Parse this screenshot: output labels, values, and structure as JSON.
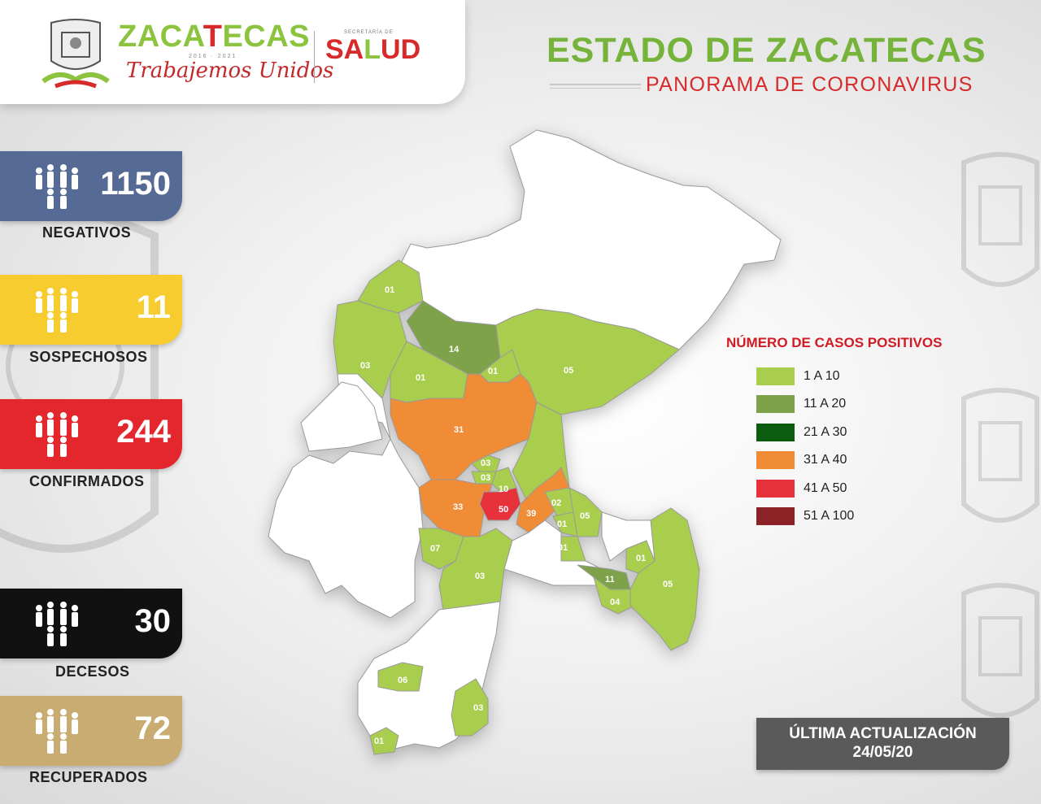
{
  "header": {
    "brand_left": "ZACA",
    "brand_mid": "T",
    "brand_right": "ECAS",
    "years": "2016 · 2021",
    "slogan": "Trabajemos Unidos",
    "secretaria": "SECRETARÍA DE",
    "salud_a": "SA",
    "salud_b": "L",
    "salud_c": "UD",
    "title": "ESTADO DE ZACATECAS",
    "subtitle": "PANORAMA DE CORONAVIRUS"
  },
  "stats": [
    {
      "label": "NEGATIVOS",
      "value": "1150",
      "color": "#566a96"
    },
    {
      "label": "SOSPECHOSOS",
      "value": "11",
      "color": "#f6cc2f"
    },
    {
      "label": "CONFIRMADOS",
      "value": "244",
      "color": "#e3272d"
    },
    {
      "label": "DECESOS",
      "value": "30",
      "color": "#111111"
    },
    {
      "label": "RECUPERADOS",
      "value": "72",
      "color": "#c8ac72"
    }
  ],
  "legend": {
    "title": "NÚMERO DE CASOS POSITIVOS",
    "items": [
      {
        "label": "1 A 10",
        "color": "#a9cd4c"
      },
      {
        "label": "11 A 20",
        "color": "#7ea24a"
      },
      {
        "label": "21 A 30",
        "color": "#0c5c0f"
      },
      {
        "label": "31 A 40",
        "color": "#f08b36"
      },
      {
        "label": "41 A 50",
        "color": "#e8323b"
      },
      {
        "label": "51 A 100",
        "color": "#8b2326"
      }
    ]
  },
  "update": {
    "line1": "ÚLTIMA ACTUALIZACIÓN",
    "line2": "24/05/20"
  },
  "map_labels": [
    "01",
    "14",
    "03",
    "01",
    "01",
    "05",
    "31",
    "03",
    "03",
    "10",
    "33",
    "50",
    "39",
    "02",
    "05",
    "01",
    "01",
    "07",
    "03",
    "01",
    "11",
    "04",
    "05",
    "06",
    "03",
    "01"
  ]
}
